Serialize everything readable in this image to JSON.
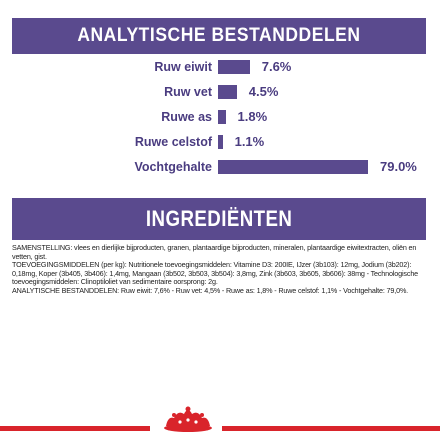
{
  "colors": {
    "band": "#5a4a8e",
    "text_purple": "#4a3c80",
    "accent_red": "#d9242b"
  },
  "analytical": {
    "title": "ANALYTISCHE BESTANDDELEN",
    "rows": [
      {
        "label": "Ruw eiwit",
        "value": "7.6%",
        "percent": 7.6
      },
      {
        "label": "Ruw vet",
        "value": "4.5%",
        "percent": 4.5
      },
      {
        "label": "Ruwe as",
        "value": "1.8%",
        "percent": 1.8
      },
      {
        "label": "Ruwe celstof",
        "value": "1.1%",
        "percent": 1.1
      },
      {
        "label": "Vochtgehalte",
        "value": "79.0%",
        "percent": 79.0
      }
    ]
  },
  "ingredients": {
    "title": "INGREDIËNTEN",
    "composition": "SAMENSTELLING: vlees en dierlijke bijproducten, granen, plantaardige bijproducten, mineralen, plantaardige eiwitextracten, oliën en vetten, gist.",
    "additives": "TOEVOEGINGSMIDDELEN (per kg): Nutritionele toevoegingsmiddelen: Vitamine D3: 200IE, IJzer (3b103): 12mg, Jodium (3b202): 0,18mg, Koper (3b405, 3b406): 1,4mg, Mangaan (3b502, 3b503, 3b504): 3,8mg, Zink (3b603, 3b605, 3b606): 38mg - Technologische toevoegingsmiddelen: Clinoptiloliet van sedimentaire oorsprong: 2g.",
    "analytical_summary": "ANALYTISCHE BESTANDDELEN: Ruw eiwit: 7,6% - Ruw vet: 4,5% - Ruwe as: 1,8% - Ruwe celstof: 1,1% - Vochtgehalte: 79,0%."
  },
  "footer": {
    "logo_icon": "crown-icon"
  }
}
